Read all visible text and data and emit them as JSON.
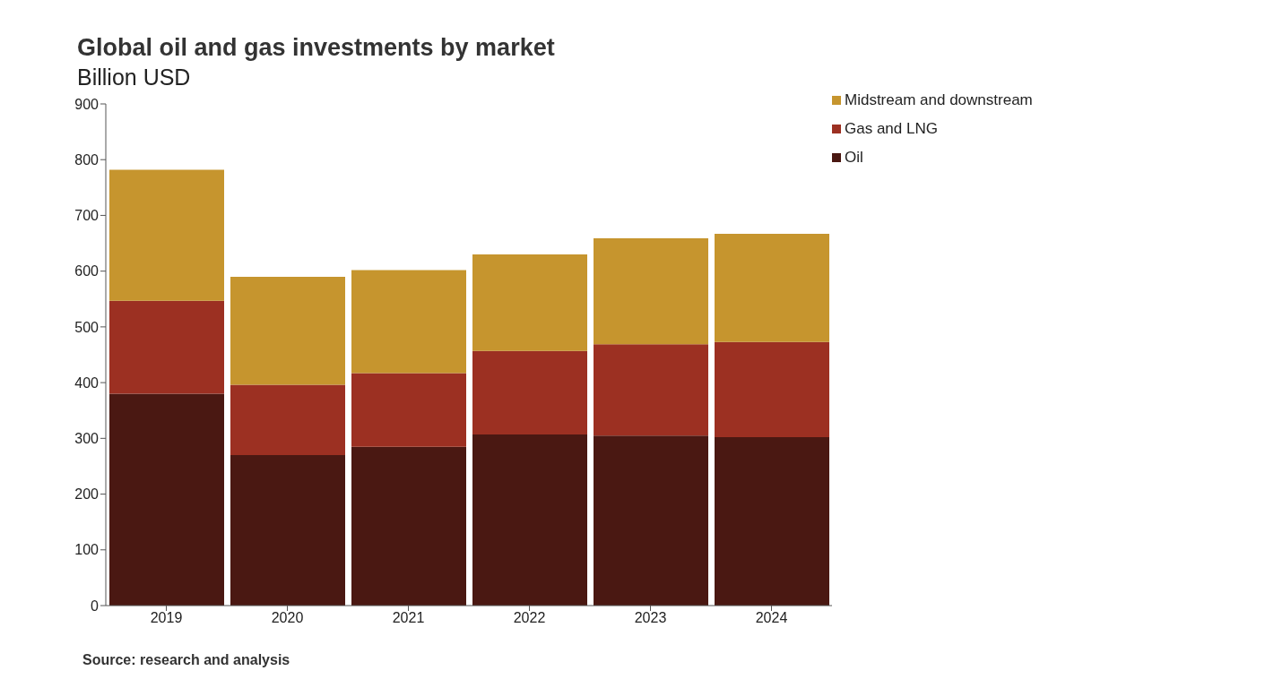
{
  "chart_data": {
    "type": "bar",
    "title": "Global oil and gas investments by market",
    "subtitle": "Billion USD",
    "categories": [
      "2019",
      "2020",
      "2021",
      "2022",
      "2023",
      "2024"
    ],
    "series": [
      {
        "name": "Oil",
        "color": "#4a1812",
        "values": [
          380,
          270,
          285,
          307,
          305,
          302
        ]
      },
      {
        "name": "Gas and LNG",
        "color": "#9c3022",
        "values": [
          167,
          126,
          132,
          150,
          164,
          171
        ]
      },
      {
        "name": "Midstream and downstream",
        "color": "#c6952e",
        "values": [
          235,
          194,
          185,
          173,
          190,
          194
        ]
      }
    ],
    "stacked": true,
    "ylim": [
      0,
      900
    ],
    "yticks": [
      0,
      100,
      200,
      300,
      400,
      500,
      600,
      700,
      800,
      900
    ],
    "grid": false,
    "legend": "top right",
    "annotations": [
      "Source: research and analysis"
    ]
  }
}
